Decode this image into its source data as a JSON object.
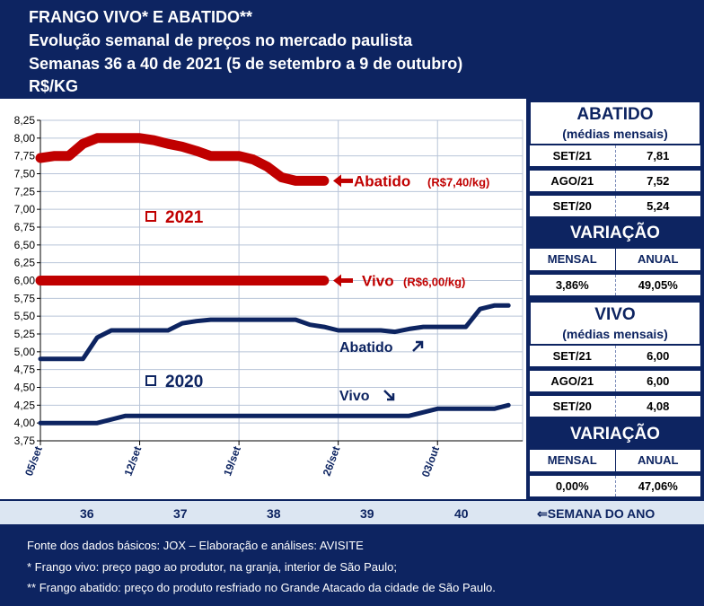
{
  "header": {
    "line1": "FRANGO VIVO* E ABATIDO**",
    "line2": "Evolução semanal de preços no mercado paulista",
    "line3": "Semanas 36 a 40 de 2021 (5 de setembro a 9 de outubro)",
    "line4": "R$/KG"
  },
  "chart_data": {
    "type": "line",
    "y_ticks": [
      "8,25",
      "8,00",
      "7,75",
      "7,50",
      "7,25",
      "7,00",
      "6,75",
      "6,50",
      "6,25",
      "6,00",
      "5,75",
      "5,50",
      "5,25",
      "5,00",
      "4,75",
      "4,50",
      "4,25",
      "4,00",
      "3,75"
    ],
    "ylim": [
      3.75,
      8.25
    ],
    "x_ticks": [
      "05/set",
      "12/set",
      "19/set",
      "26/set",
      "03/out"
    ],
    "x_tick_days": [
      0,
      7,
      14,
      21,
      28
    ],
    "xlim": [
      0,
      34
    ],
    "grid": true,
    "series": [
      {
        "name": "Abatido",
        "year": "2021",
        "color": "#c00000",
        "x": [
          0,
          1,
          2,
          3,
          4,
          5,
          7,
          8,
          9,
          10,
          11,
          12,
          13,
          14,
          15,
          16,
          17,
          18,
          19,
          20
        ],
        "values": [
          7.72,
          7.75,
          7.75,
          7.92,
          8.0,
          8.0,
          8.0,
          7.97,
          7.92,
          7.88,
          7.82,
          7.75,
          7.75,
          7.75,
          7.7,
          7.6,
          7.45,
          7.4,
          7.4,
          7.4
        ]
      },
      {
        "name": "Vivo",
        "year": "2021",
        "color": "#c00000",
        "x": [
          0,
          20
        ],
        "values": [
          6.0,
          6.0
        ]
      },
      {
        "name": "Abatido",
        "year": "2020",
        "color": "#0d2461",
        "x": [
          0,
          2,
          3,
          4,
          5,
          6,
          7,
          8,
          9,
          10,
          11,
          12,
          13,
          14,
          15,
          16,
          17,
          18,
          19,
          20,
          21,
          22,
          23,
          24,
          25,
          26,
          27,
          28,
          29,
          30,
          31,
          32,
          33
        ],
        "values": [
          4.9,
          4.9,
          4.9,
          5.2,
          5.3,
          5.3,
          5.3,
          5.3,
          5.3,
          5.4,
          5.43,
          5.45,
          5.45,
          5.45,
          5.45,
          5.45,
          5.45,
          5.45,
          5.38,
          5.35,
          5.3,
          5.3,
          5.3,
          5.3,
          5.28,
          5.32,
          5.35,
          5.35,
          5.35,
          5.35,
          5.6,
          5.65,
          5.65
        ]
      },
      {
        "name": "Vivo",
        "year": "2020",
        "color": "#0d2461",
        "x": [
          0,
          4,
          6,
          26,
          28,
          30,
          32,
          33
        ],
        "values": [
          4.0,
          4.0,
          4.1,
          4.1,
          4.2,
          4.2,
          4.2,
          4.25
        ]
      }
    ],
    "annotations": {
      "abatido_2021": {
        "label": "Abatido",
        "value": "(R$7,40/kg)"
      },
      "vivo_2021": {
        "label": "Vivo",
        "value": "(R$6,00/kg)"
      },
      "year_2021": "2021",
      "year_2020": "2020",
      "abatido_2020": "Abatido",
      "vivo_2020": "Vivo"
    },
    "colors": {
      "red": "#c00000",
      "navy": "#0d2461",
      "grid": "#b8c4d8"
    }
  },
  "side": {
    "abatido": {
      "title": "ABATIDO",
      "subtitle": "(médias mensais)",
      "rows": [
        [
          "SET/21",
          "7,81"
        ],
        [
          "AGO/21",
          "7,52"
        ],
        [
          "SET/20",
          "5,24"
        ]
      ],
      "variation_title": "VARIAÇÃO",
      "cols": [
        "MENSAL",
        "ANUAL"
      ],
      "values": [
        "3,86%",
        "49,05%"
      ]
    },
    "vivo": {
      "title": "VIVO",
      "subtitle": "(médias mensais)",
      "rows": [
        [
          "SET/21",
          "6,00"
        ],
        [
          "AGO/21",
          "6,00"
        ],
        [
          "SET/20",
          "4,08"
        ]
      ],
      "variation_title": "VARIAÇÃO",
      "cols": [
        "MENSAL",
        "ANUAL"
      ],
      "values": [
        "0,00%",
        "47,06%"
      ]
    }
  },
  "weeks": {
    "labels": [
      "36",
      "37",
      "38",
      "39",
      "40"
    ],
    "caption": "⇐SEMANA DO ANO"
  },
  "footer": {
    "line1": "Fonte dos dados básicos: JOX – Elaboração e análises: AVISITE",
    "line2": "*   Frango vivo: preço pago ao produtor, na granja, interior de São Paulo;",
    "line3": "** Frango abatido: preço do produto resfriado no Grande Atacado da cidade de São Paulo."
  }
}
